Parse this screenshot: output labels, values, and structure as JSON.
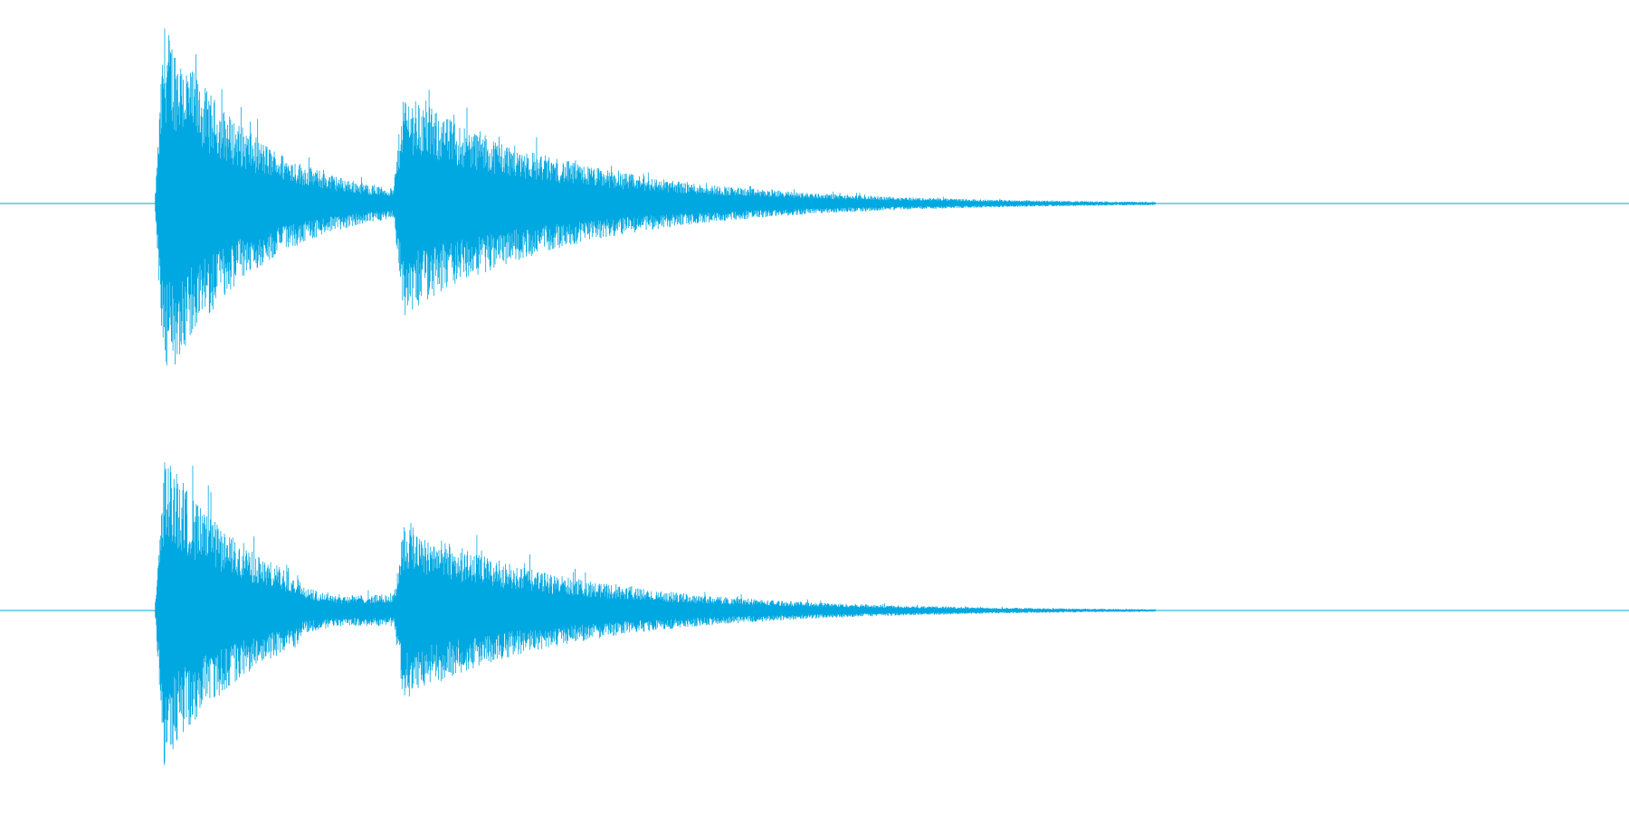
{
  "waveform": {
    "color": "#00a8e1"
  }
}
